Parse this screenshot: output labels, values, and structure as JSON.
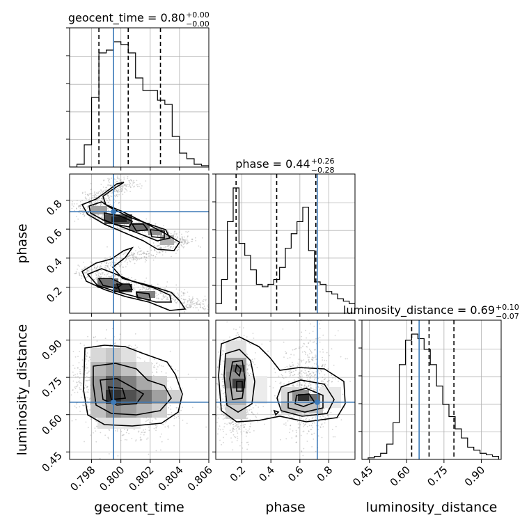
{
  "chart_data": {
    "type": "corner",
    "parameters": [
      {
        "key": "geocent_time",
        "label": "geocent_time",
        "range": [
          0.7965,
          0.806
        ],
        "ticks": [
          0.798,
          0.8,
          0.802,
          0.804,
          0.806
        ],
        "tick_labels": [
          "0.798",
          "0.800",
          "0.802",
          "0.804",
          "0.806"
        ],
        "truth": 0.7995,
        "quantiles": [
          0.7985,
          0.8005,
          0.8027
        ],
        "title_main": "geocent_time = 0.80",
        "title_sup": "+0.00",
        "title_sub": "−0.00",
        "hist_edges_start": 0.7965,
        "hist_bin_width": 0.0005,
        "hist_counts": [
          0,
          2,
          16,
          50,
          82,
          84,
          90,
          88,
          82,
          64,
          55,
          55,
          48,
          45,
          22,
          10,
          6,
          2,
          1
        ]
      },
      {
        "key": "phase",
        "label": "phase",
        "range": [
          0.02,
          0.98
        ],
        "ticks": [
          0.2,
          0.4,
          0.6,
          0.8
        ],
        "tick_labels": [
          "0.2",
          "0.4",
          "0.6",
          "0.8"
        ],
        "truth": 0.72,
        "quantiles": [
          0.16,
          0.44,
          0.71
        ],
        "title_main": "phase = 0.44",
        "title_sup": "+0.26",
        "title_sub": "−0.28",
        "hist_edges_start": 0.02,
        "hist_bin_width": 0.04,
        "hist_counts": [
          4,
          14,
          38,
          52,
          29,
          24,
          18,
          12,
          11,
          12,
          14,
          19,
          27,
          33,
          38,
          44,
          26,
          13,
          12,
          9,
          8,
          6,
          5,
          4
        ]
      },
      {
        "key": "luminosity_distance",
        "label": "luminosity_distance",
        "range": [
          0.42,
          0.98
        ],
        "ticks": [
          0.45,
          0.6,
          0.75,
          0.9
        ],
        "tick_labels": [
          "0.45",
          "0.60",
          "0.75",
          "0.90"
        ],
        "truth": 0.65,
        "quantiles": [
          0.62,
          0.69,
          0.79
        ],
        "title_main": "luminosity_distance = 0.69",
        "title_sup": "+0.10",
        "title_sub": "−0.07",
        "hist_edges_start": 0.42,
        "hist_bin_width": 0.025,
        "hist_counts": [
          0,
          1,
          2,
          4,
          10,
          24,
          62,
          78,
          82,
          79,
          72,
          62,
          48,
          36,
          28,
          20,
          14,
          8,
          6,
          4,
          3,
          2
        ]
      }
    ]
  }
}
